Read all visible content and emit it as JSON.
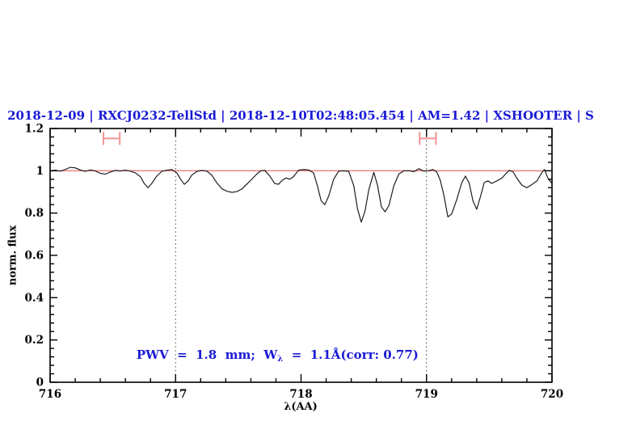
{
  "colors": {
    "annotation_blue": "#1a1ad6",
    "continuum_red": "#e87c7c",
    "marker_red": "#f29b9b",
    "spectrum": "#161616",
    "frame": "#000000",
    "dotted_line": "#444444",
    "tick_label": "#000000"
  },
  "chart_data": {
    "type": "line",
    "title": "2018-12-09 | RXCJ0232-TellStd | 2018-12-10T02:48:05.454 | AM=1.42 | XSHOOTER | S",
    "xlabel": "λ(AA)",
    "ylabel": "norm. flux",
    "xlim": [
      716,
      720
    ],
    "ylim": [
      0,
      1.2
    ],
    "xticks": [
      716,
      717,
      718,
      719,
      720
    ],
    "xtick_labels": [
      "716",
      "717",
      "718",
      "719",
      "720"
    ],
    "x_minor_step": 0.2,
    "yticks": [
      0,
      0.2,
      0.4,
      0.6,
      0.8,
      1,
      1.2
    ],
    "ytick_labels": [
      "0",
      "0.2",
      "0.4",
      "0.6",
      "0.8",
      "1",
      "1.2"
    ],
    "y_minor_step": 0.04,
    "grid": false,
    "legend": null,
    "reference_lines": {
      "continuum_flux": 1.0,
      "vertical_dotted_x": [
        717.0,
        719.0
      ]
    },
    "band_markers": [
      {
        "type": "h-errorbar",
        "x_center": 716.49,
        "half_width": 0.065,
        "flux": 1.153
      },
      {
        "type": "h-errorbar",
        "x_center": 719.01,
        "half_width": 0.065,
        "flux": 1.153
      }
    ],
    "series": [
      {
        "name": "telluric-spectrum",
        "points": [
          [
            716.0,
            1.0
          ],
          [
            716.04,
            1.003
          ],
          [
            716.08,
            0.998
          ],
          [
            716.12,
            1.006
          ],
          [
            716.16,
            1.016
          ],
          [
            716.2,
            1.014
          ],
          [
            716.24,
            1.004
          ],
          [
            716.28,
            0.997
          ],
          [
            716.32,
            1.004
          ],
          [
            716.36,
            0.999
          ],
          [
            716.4,
            0.988
          ],
          [
            716.44,
            0.984
          ],
          [
            716.48,
            0.994
          ],
          [
            716.52,
            1.002
          ],
          [
            716.56,
            0.999
          ],
          [
            716.6,
            1.003
          ],
          [
            716.64,
            0.998
          ],
          [
            716.68,
            0.99
          ],
          [
            716.72,
            0.972
          ],
          [
            716.75,
            0.94
          ],
          [
            716.78,
            0.92
          ],
          [
            716.81,
            0.94
          ],
          [
            716.85,
            0.975
          ],
          [
            716.89,
            0.997
          ],
          [
            716.93,
            1.003
          ],
          [
            716.97,
            1.006
          ],
          [
            717.01,
            0.99
          ],
          [
            717.04,
            0.96
          ],
          [
            717.07,
            0.936
          ],
          [
            717.1,
            0.952
          ],
          [
            717.13,
            0.98
          ],
          [
            717.17,
            0.997
          ],
          [
            717.21,
            1.002
          ],
          [
            717.25,
            0.998
          ],
          [
            717.29,
            0.978
          ],
          [
            717.33,
            0.942
          ],
          [
            717.37,
            0.915
          ],
          [
            717.41,
            0.903
          ],
          [
            717.45,
            0.898
          ],
          [
            717.49,
            0.902
          ],
          [
            717.53,
            0.915
          ],
          [
            717.57,
            0.938
          ],
          [
            717.61,
            0.962
          ],
          [
            717.65,
            0.986
          ],
          [
            717.68,
            1.0
          ],
          [
            717.71,
            1.002
          ],
          [
            717.75,
            0.976
          ],
          [
            717.79,
            0.94
          ],
          [
            717.82,
            0.936
          ],
          [
            717.85,
            0.955
          ],
          [
            717.88,
            0.966
          ],
          [
            717.91,
            0.96
          ],
          [
            717.94,
            0.972
          ],
          [
            717.98,
            1.003
          ],
          [
            718.02,
            1.006
          ],
          [
            718.06,
            1.004
          ],
          [
            718.1,
            0.99
          ],
          [
            718.13,
            0.93
          ],
          [
            718.16,
            0.858
          ],
          [
            718.19,
            0.84
          ],
          [
            718.22,
            0.88
          ],
          [
            718.26,
            0.96
          ],
          [
            718.3,
            0.998
          ],
          [
            718.34,
            1.0
          ],
          [
            718.38,
            0.997
          ],
          [
            718.42,
            0.93
          ],
          [
            718.45,
            0.82
          ],
          [
            718.48,
            0.757
          ],
          [
            718.51,
            0.81
          ],
          [
            718.54,
            0.91
          ],
          [
            718.58,
            0.993
          ],
          [
            718.61,
            0.93
          ],
          [
            718.64,
            0.83
          ],
          [
            718.67,
            0.806
          ],
          [
            718.7,
            0.835
          ],
          [
            718.74,
            0.93
          ],
          [
            718.78,
            0.985
          ],
          [
            718.82,
            1.0
          ],
          [
            718.86,
            1.0
          ],
          [
            718.9,
            0.996
          ],
          [
            718.94,
            1.01
          ],
          [
            718.98,
            0.998
          ],
          [
            719.02,
            1.001
          ],
          [
            719.05,
            1.006
          ],
          [
            719.08,
            0.996
          ],
          [
            719.11,
            0.955
          ],
          [
            719.14,
            0.88
          ],
          [
            719.17,
            0.782
          ],
          [
            719.2,
            0.795
          ],
          [
            719.24,
            0.862
          ],
          [
            719.28,
            0.942
          ],
          [
            719.31,
            0.975
          ],
          [
            719.34,
            0.942
          ],
          [
            719.37,
            0.858
          ],
          [
            719.4,
            0.818
          ],
          [
            719.43,
            0.878
          ],
          [
            719.46,
            0.945
          ],
          [
            719.49,
            0.952
          ],
          [
            719.52,
            0.94
          ],
          [
            719.56,
            0.952
          ],
          [
            719.6,
            0.965
          ],
          [
            719.63,
            0.985
          ],
          [
            719.66,
            1.002
          ],
          [
            719.69,
            0.995
          ],
          [
            719.72,
            0.965
          ],
          [
            719.76,
            0.932
          ],
          [
            719.8,
            0.92
          ],
          [
            719.84,
            0.935
          ],
          [
            719.88,
            0.952
          ],
          [
            719.92,
            0.992
          ],
          [
            719.94,
            1.006
          ],
          [
            719.97,
            0.962
          ],
          [
            720.0,
            0.94
          ]
        ]
      }
    ]
  },
  "annotation": {
    "pre": "PWV  =  1.8  mm;  W",
    "sub": "λ",
    "post": "  =  1.1Å(corr: 0.77)"
  }
}
